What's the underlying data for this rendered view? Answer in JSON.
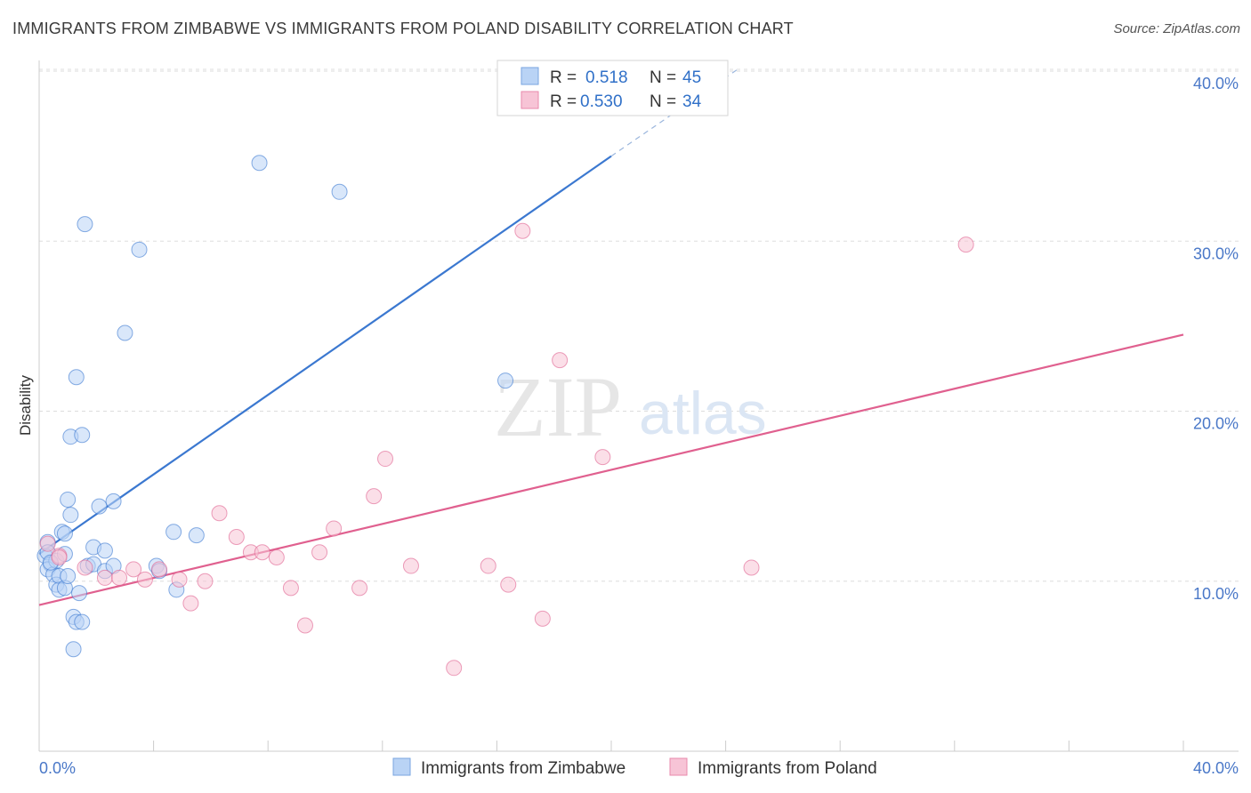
{
  "title": "IMMIGRANTS FROM ZIMBABWE VS IMMIGRANTS FROM POLAND DISABILITY CORRELATION CHART",
  "source": "Source: ZipAtlas.com",
  "watermark": {
    "zip": "ZIP",
    "atlas": "atlas"
  },
  "colors": {
    "blue": "#3b78d0",
    "blue_fill": "#b9d3f5",
    "pink": "#e0608f",
    "pink_fill": "#f7c4d6",
    "grid": "#dddddd",
    "tick_label": "#4a78c8"
  },
  "chart_data": {
    "type": "scatter",
    "title": "IMMIGRANTS FROM ZIMBABWE VS IMMIGRANTS FROM POLAND DISABILITY CORRELATION CHART",
    "xlabel": "",
    "ylabel": "Disability",
    "xlim": [
      0,
      40
    ],
    "ylim": [
      0,
      40
    ],
    "x_tick_labels": [
      "0.0%",
      "40.0%"
    ],
    "y_ticks": [
      10,
      20,
      30,
      40
    ],
    "y_tick_labels": [
      "10.0%",
      "20.0%",
      "30.0%",
      "40.0%"
    ],
    "legend": {
      "rows": [
        {
          "r_label": "R =",
          "r_value": "0.518",
          "n_label": "N =",
          "n_value": "45"
        },
        {
          "r_label": "R =",
          "r_value": "0.530",
          "n_label": "N =",
          "n_value": "34"
        }
      ]
    },
    "series": [
      {
        "name": "Immigrants from Zimbabwe",
        "color": "blue",
        "trend": {
          "x0": 0,
          "y0": 11.6,
          "x1": 20,
          "y1": 35,
          "dash_x1": 24.5,
          "dash_y1": 40.2
        },
        "points": [
          [
            0.2,
            11.5
          ],
          [
            0.3,
            12.3
          ],
          [
            0.3,
            11.7
          ],
          [
            0.4,
            11.0
          ],
          [
            0.3,
            10.7
          ],
          [
            0.5,
            10.4
          ],
          [
            0.6,
            9.8
          ],
          [
            0.6,
            11.2
          ],
          [
            0.7,
            10.3
          ],
          [
            0.7,
            9.5
          ],
          [
            0.8,
            12.9
          ],
          [
            0.9,
            12.8
          ],
          [
            0.9,
            9.6
          ],
          [
            0.9,
            11.6
          ],
          [
            1.0,
            10.3
          ],
          [
            1.0,
            14.8
          ],
          [
            1.1,
            18.5
          ],
          [
            1.1,
            13.9
          ],
          [
            1.2,
            6.0
          ],
          [
            1.2,
            7.9
          ],
          [
            1.3,
            7.6
          ],
          [
            1.3,
            22.0
          ],
          [
            1.4,
            9.3
          ],
          [
            1.5,
            7.6
          ],
          [
            1.5,
            18.6
          ],
          [
            1.6,
            31.0
          ],
          [
            1.7,
            10.9
          ],
          [
            1.9,
            12.0
          ],
          [
            1.9,
            11.0
          ],
          [
            2.1,
            14.4
          ],
          [
            2.3,
            10.6
          ],
          [
            2.3,
            11.8
          ],
          [
            2.6,
            14.7
          ],
          [
            2.6,
            10.9
          ],
          [
            3.0,
            24.6
          ],
          [
            3.5,
            29.5
          ],
          [
            4.1,
            10.9
          ],
          [
            4.2,
            10.6
          ],
          [
            4.7,
            12.9
          ],
          [
            4.8,
            9.5
          ],
          [
            5.5,
            12.7
          ],
          [
            7.7,
            34.6
          ],
          [
            10.5,
            32.9
          ],
          [
            16.3,
            21.8
          ],
          [
            0.4,
            11.1
          ]
        ]
      },
      {
        "name": "Immigrants from Poland",
        "color": "pink",
        "trend": {
          "x0": 0,
          "y0": 8.6,
          "x1": 40,
          "y1": 24.5
        },
        "points": [
          [
            0.3,
            12.2
          ],
          [
            0.7,
            11.5
          ],
          [
            0.7,
            11.4
          ],
          [
            1.6,
            10.8
          ],
          [
            2.3,
            10.2
          ],
          [
            2.8,
            10.2
          ],
          [
            3.3,
            10.7
          ],
          [
            3.7,
            10.1
          ],
          [
            4.2,
            10.7
          ],
          [
            4.9,
            10.1
          ],
          [
            5.3,
            8.7
          ],
          [
            5.8,
            10.0
          ],
          [
            6.3,
            14.0
          ],
          [
            6.9,
            12.6
          ],
          [
            7.4,
            11.7
          ],
          [
            7.8,
            11.7
          ],
          [
            8.3,
            11.4
          ],
          [
            8.8,
            9.6
          ],
          [
            9.3,
            7.4
          ],
          [
            9.8,
            11.7
          ],
          [
            10.3,
            13.1
          ],
          [
            11.2,
            9.6
          ],
          [
            11.7,
            15.0
          ],
          [
            12.1,
            17.2
          ],
          [
            13.0,
            10.9
          ],
          [
            14.5,
            4.9
          ],
          [
            15.7,
            10.9
          ],
          [
            16.4,
            9.8
          ],
          [
            16.9,
            30.6
          ],
          [
            17.6,
            7.8
          ],
          [
            18.2,
            23.0
          ],
          [
            19.7,
            17.3
          ],
          [
            24.9,
            10.8
          ],
          [
            32.4,
            29.8
          ]
        ]
      }
    ]
  },
  "bottom_legend": [
    {
      "label": "Immigrants from Zimbabwe",
      "color": "blue"
    },
    {
      "label": "Immigrants from Poland",
      "color": "pink"
    }
  ]
}
